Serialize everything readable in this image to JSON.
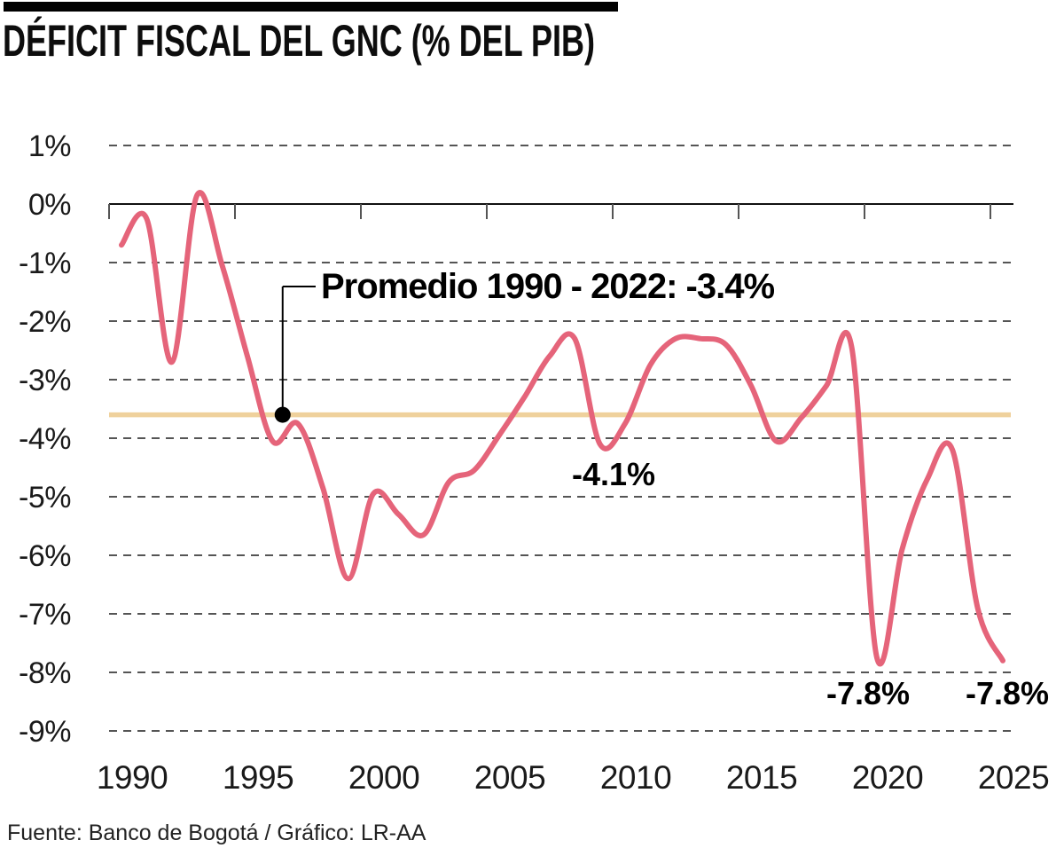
{
  "header": {
    "title": "DÉFICIT FISCAL DEL GNC (% DEL PIB)"
  },
  "footer": {
    "source": "Fuente: Banco de Bogotá / Gráfico: LR-AA"
  },
  "colors": {
    "series": "#e5647a",
    "average_line": "#efd19c",
    "grid": "#555555",
    "axis": "#111111",
    "tick": "#555555",
    "text": "#1a1a1a",
    "accent_bar": "#000000"
  },
  "chart_data": {
    "type": "line",
    "title": "DÉFICIT FISCAL DEL GNC (% DEL PIB)",
    "xlabel": "",
    "ylabel": "% del PIB",
    "x": [
      1990,
      1991,
      1992,
      1993,
      1994,
      1995,
      1996,
      1997,
      1998,
      1999,
      2000,
      2001,
      2002,
      2003,
      2004,
      2005,
      2006,
      2007,
      2008,
      2009,
      2010,
      2011,
      2012,
      2013,
      2014,
      2015,
      2016,
      2017,
      2018,
      2019,
      2020,
      2021,
      2022,
      2023,
      2024,
      2025
    ],
    "series": [
      {
        "name": "Déficit fiscal del GNC (% del PIB)",
        "values": [
          -0.7,
          -0.25,
          -2.7,
          0.15,
          -1.05,
          -2.6,
          -4.05,
          -3.75,
          -4.85,
          -6.4,
          -4.95,
          -5.3,
          -5.65,
          -4.75,
          -4.55,
          -3.95,
          -3.3,
          -2.6,
          -2.3,
          -4.1,
          -3.75,
          -2.75,
          -2.3,
          -2.3,
          -2.4,
          -3.1,
          -4.05,
          -3.65,
          -3.1,
          -2.45,
          -7.75,
          -5.9,
          -4.7,
          -4.2,
          -6.9,
          -7.8
        ]
      }
    ],
    "x_ticks": [
      1990,
      1995,
      2000,
      2005,
      2010,
      2015,
      2020,
      2025
    ],
    "x_tick_labels": [
      "1990",
      "1995",
      "2000",
      "2005",
      "2010",
      "2015",
      "2020",
      "2025"
    ],
    "y_ticks": [
      1,
      0,
      -1,
      -2,
      -3,
      -4,
      -5,
      -6,
      -7,
      -8,
      -9
    ],
    "y_tick_labels": [
      "1%",
      "0%",
      "-1%",
      "-2%",
      "-3%",
      "-4%",
      "-5%",
      "-6%",
      "-7%",
      "-8%",
      "-9%"
    ],
    "ylim": [
      -9,
      1
    ],
    "grid": "horizontal-dashed",
    "legend": "none",
    "average_line": {
      "label": "Promedio 1990 - 2022: -3.4%",
      "value": -3.4,
      "drawn_at": -3.6,
      "marker_year": 1996.4
    },
    "point_labels": [
      {
        "year": 2009,
        "value": -4.1,
        "text": "-4.1%"
      },
      {
        "year": 2020,
        "value": -7.8,
        "text": "-7.8%"
      },
      {
        "year": 2025,
        "value": -7.8,
        "text": "-7.8%"
      }
    ]
  }
}
